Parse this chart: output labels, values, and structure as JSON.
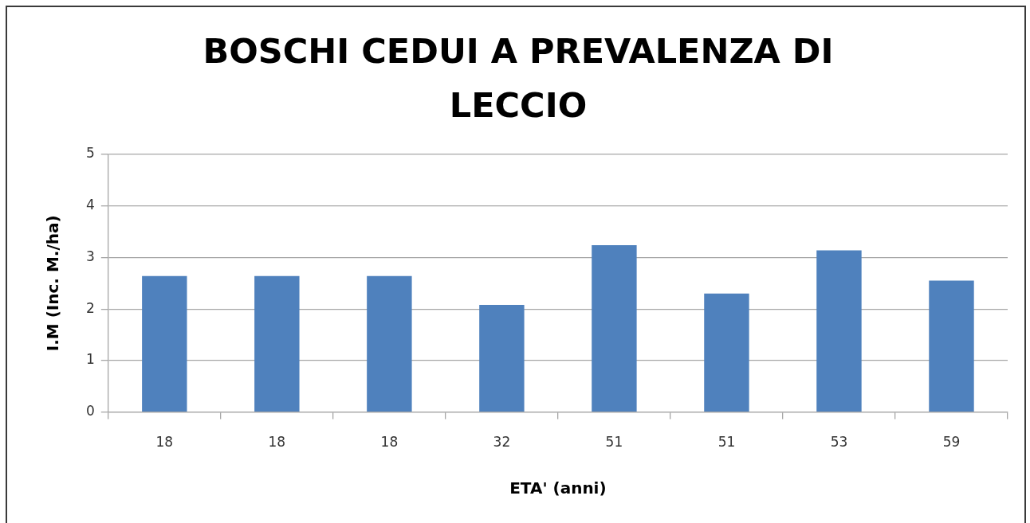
{
  "chart_data": {
    "type": "bar",
    "title": "BOSCHI CEDUI A PREVALENZA DI LECCIO",
    "xlabel": "ETA' (anni)",
    "ylabel": "I.M (Inc. M./ha)",
    "categories": [
      "18",
      "18",
      "18",
      "32",
      "51",
      "51",
      "53",
      "59"
    ],
    "values": [
      2.64,
      2.64,
      2.64,
      2.08,
      3.24,
      2.3,
      3.14,
      2.55
    ],
    "color": "#4f81bd",
    "ylim": [
      0,
      5
    ],
    "yticks": [
      0,
      1,
      2,
      3,
      4,
      5
    ],
    "grid": "y"
  }
}
